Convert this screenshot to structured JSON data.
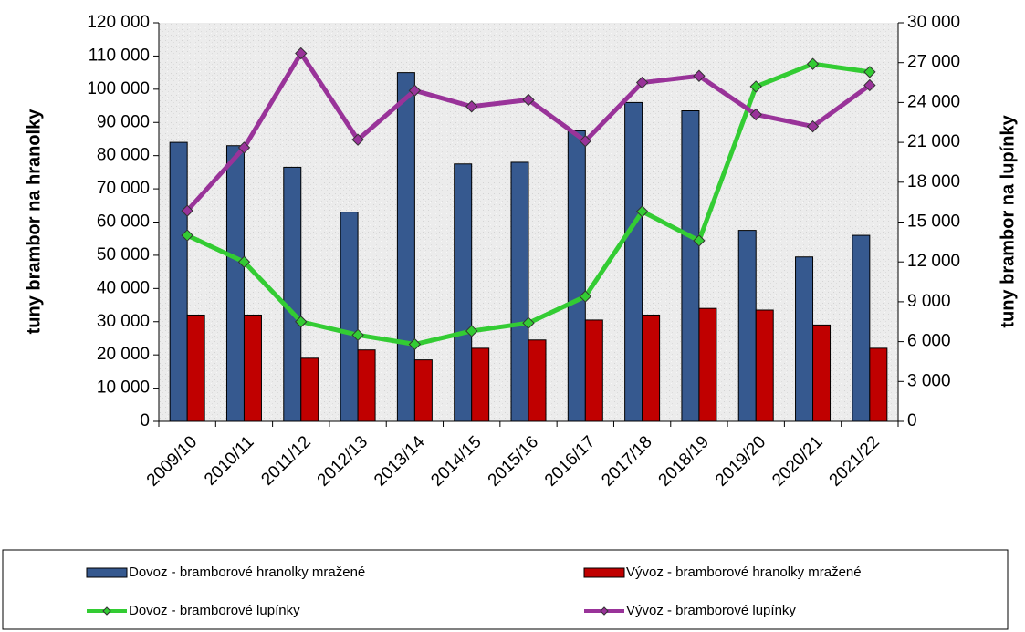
{
  "chart_data": {
    "type": "bar_line",
    "ylabel": "tuny brambor na hranolky",
    "y2label": "tuny brambor na lupínky",
    "categories": [
      "2009/10",
      "2010/11",
      "2011/12",
      "2012/13",
      "2013/14",
      "2014/15",
      "2015/16",
      "2016/17",
      "2017/18",
      "2018/19",
      "2019/20",
      "2020/21",
      "2021/22"
    ],
    "series": [
      {
        "name": "Dovoz - bramborové hranolky mražené",
        "color": "#36598f",
        "kind": "bar",
        "values": [
          84000,
          83000,
          76500,
          63000,
          105000,
          77500,
          78000,
          87500,
          96000,
          93500,
          57500,
          49500,
          56000
        ]
      },
      {
        "name": "Vývoz - bramborové hranolky mražené",
        "color": "#c00000",
        "kind": "bar",
        "values": [
          32000,
          32000,
          19000,
          21500,
          18500,
          22000,
          24500,
          30500,
          32000,
          34000,
          33500,
          29000,
          22000
        ]
      },
      {
        "name": "Dovoz - bramborové lupínky",
        "color": "#33cc33",
        "kind": "line",
        "axis": "y2",
        "values": [
          14000,
          12000,
          7500,
          6500,
          5800,
          6800,
          7400,
          9400,
          15800,
          13600,
          25200,
          26900,
          26300
        ]
      },
      {
        "name": "Vývoz - bramborové lupínky",
        "color": "#993399",
        "kind": "line",
        "axis": "y2",
        "values": [
          15850,
          20600,
          27700,
          21200,
          24900,
          23700,
          24200,
          21100,
          25500,
          26000,
          23100,
          22200,
          25300
        ]
      }
    ],
    "ylim": [
      0,
      120000
    ],
    "yticks": [
      0,
      {
        "value": 10000,
        "label": "10 000"
      },
      {
        "value": 20000,
        "label": "20 000"
      },
      {
        "value": 30000,
        "label": "30 000"
      },
      {
        "value": 40000,
        "label": "40 000"
      },
      {
        "value": 50000,
        "label": "50 000"
      },
      {
        "value": 60000,
        "label": "60 000"
      },
      {
        "value": 70000,
        "label": "70 000"
      },
      {
        "value": 80000,
        "label": "80 000"
      },
      {
        "value": 90000,
        "label": "90 000"
      },
      {
        "value": 100000,
        "label": "100 000"
      },
      {
        "value": 110000,
        "label": "110 000"
      },
      {
        "value": 120000,
        "label": "120 000"
      }
    ],
    "y2lim": [
      0,
      30000
    ],
    "y2ticks": [
      0,
      {
        "value": 3000,
        "label": "3 000"
      },
      {
        "value": 6000,
        "label": "6 000"
      },
      {
        "value": 9000,
        "label": "9 000"
      },
      {
        "value": 12000,
        "label": "12 000"
      },
      {
        "value": 15000,
        "label": "15 000"
      },
      {
        "value": 18000,
        "label": "18 000"
      },
      {
        "value": 21000,
        "label": "21 000"
      },
      {
        "value": 24000,
        "label": "24 000"
      },
      {
        "value": 27000,
        "label": "27 000"
      },
      {
        "value": 30000,
        "label": "30 000"
      }
    ]
  }
}
